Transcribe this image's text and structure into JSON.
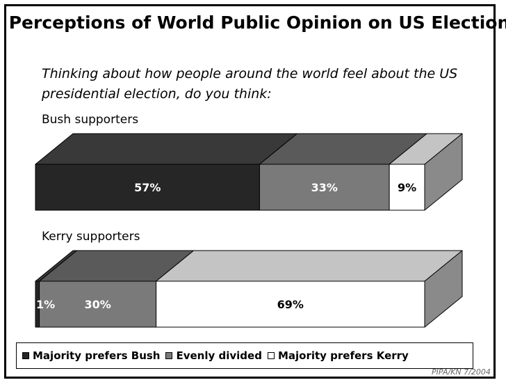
{
  "title": "Perceptions of World Public Opinion on US Election",
  "subtitle": "Thinking about how people around the world feel about the US presidential election, do you think:",
  "source": "PIPA/KN 7/2004",
  "colors": {
    "bush_front": "#262626",
    "bush_top": "#393939",
    "even_front": "#7a7a7a",
    "even_top": "#5a5a5a",
    "kerry_front": "#ffffff",
    "kerry_top": "#c4c4c4",
    "side": "#8a8a8a"
  },
  "chart_data": {
    "type": "bar",
    "orientation": "horizontal-stacked-100",
    "categories": [
      "Bush supporters",
      "Kerry supporters"
    ],
    "series": [
      {
        "name": "Majority prefers Bush",
        "values": [
          57,
          1
        ],
        "labels": [
          "57%",
          "1%"
        ]
      },
      {
        "name": "Evenly divided",
        "values": [
          33,
          30
        ],
        "labels": [
          "33%",
          "30%"
        ]
      },
      {
        "name": "Majority prefers Kerry",
        "values": [
          9,
          69
        ],
        "labels": [
          "9%",
          "69%"
        ]
      }
    ],
    "xlim": [
      0,
      100
    ],
    "legend": "bottom"
  },
  "legend": {
    "items": [
      {
        "label": "Majority prefers Bush",
        "symbol": "■"
      },
      {
        "label": "Evenly divided",
        "symbol": "■"
      },
      {
        "label": "Majority prefers Kerry",
        "symbol": "□"
      }
    ]
  }
}
